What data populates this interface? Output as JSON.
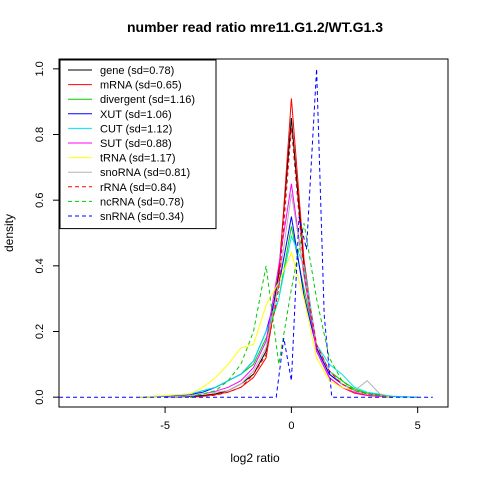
{
  "chart_data": {
    "type": "line",
    "title": "number read ratio mre11.G1.2/WT.G1.3",
    "xlabel": "log2 ratio",
    "ylabel": "density",
    "xlim": [
      -9.2,
      6.2
    ],
    "ylim": [
      -0.03,
      1.03
    ],
    "x_ticks": [
      -5,
      0,
      5
    ],
    "x_tick_labels": [
      "-5",
      "0",
      "5"
    ],
    "y_ticks": [
      0.0,
      0.2,
      0.4,
      0.6,
      0.8,
      1.0
    ],
    "y_tick_labels": [
      "0.0",
      "0.2",
      "0.4",
      "0.6",
      "0.8",
      "1.0"
    ],
    "grid": false,
    "legend_position": "top-left",
    "series": [
      {
        "name": "gene (sd=0.78)",
        "color": "#000000",
        "dash": "solid",
        "points": [
          [
            -5,
            0
          ],
          [
            -4,
            0.002
          ],
          [
            -3.5,
            0.005
          ],
          [
            -3,
            0.01
          ],
          [
            -2.5,
            0.02
          ],
          [
            -2,
            0.04
          ],
          [
            -1.5,
            0.07
          ],
          [
            -1,
            0.14
          ],
          [
            -0.5,
            0.38
          ],
          [
            0,
            0.85
          ],
          [
            0.5,
            0.4
          ],
          [
            1,
            0.15
          ],
          [
            1.5,
            0.07
          ],
          [
            2,
            0.04
          ],
          [
            2.5,
            0.02
          ],
          [
            3,
            0.01
          ],
          [
            3.5,
            0.004
          ],
          [
            4,
            0
          ]
        ]
      },
      {
        "name": "mRNA (sd=0.65)",
        "color": "#ff0000",
        "dash": "solid",
        "points": [
          [
            -4,
            0
          ],
          [
            -3.5,
            0.003
          ],
          [
            -3,
            0.008
          ],
          [
            -2.5,
            0.015
          ],
          [
            -2,
            0.03
          ],
          [
            -1.5,
            0.06
          ],
          [
            -1,
            0.12
          ],
          [
            -0.5,
            0.36
          ],
          [
            0,
            0.91
          ],
          [
            0.5,
            0.42
          ],
          [
            1,
            0.14
          ],
          [
            1.5,
            0.06
          ],
          [
            2,
            0.03
          ],
          [
            2.5,
            0.012
          ],
          [
            3,
            0.005
          ],
          [
            4,
            0
          ]
        ]
      },
      {
        "name": "divergent (sd=1.16)",
        "color": "#00cd00",
        "dash": "solid",
        "points": [
          [
            -6,
            0
          ],
          [
            -5,
            0.004
          ],
          [
            -4,
            0.008
          ],
          [
            -3.5,
            0.02
          ],
          [
            -3,
            0.03
          ],
          [
            -2.5,
            0.05
          ],
          [
            -2,
            0.07
          ],
          [
            -1.5,
            0.1
          ],
          [
            -1,
            0.18
          ],
          [
            -0.5,
            0.3
          ],
          [
            0,
            0.52
          ],
          [
            0.5,
            0.33
          ],
          [
            1,
            0.16
          ],
          [
            1.5,
            0.08
          ],
          [
            2,
            0.05
          ],
          [
            2.5,
            0.025
          ],
          [
            3,
            0.012
          ],
          [
            4,
            0.003
          ],
          [
            5,
            0
          ]
        ]
      },
      {
        "name": "XUT (sd=1.06)",
        "color": "#0000ff",
        "dash": "solid",
        "points": [
          [
            -6,
            0
          ],
          [
            -5,
            0.003
          ],
          [
            -4,
            0.008
          ],
          [
            -3.5,
            0.015
          ],
          [
            -3,
            0.03
          ],
          [
            -2.5,
            0.05
          ],
          [
            -2,
            0.07
          ],
          [
            -1.5,
            0.11
          ],
          [
            -1,
            0.2
          ],
          [
            -0.5,
            0.34
          ],
          [
            0,
            0.55
          ],
          [
            0.5,
            0.31
          ],
          [
            1,
            0.15
          ],
          [
            1.5,
            0.07
          ],
          [
            2,
            0.04
          ],
          [
            2.5,
            0.02
          ],
          [
            3,
            0.01
          ],
          [
            4,
            0.002
          ],
          [
            5,
            0
          ]
        ]
      },
      {
        "name": "CUT (sd=1.12)",
        "color": "#00e5ee",
        "dash": "solid",
        "points": [
          [
            -6,
            0
          ],
          [
            -5,
            0.004
          ],
          [
            -4,
            0.01
          ],
          [
            -3.5,
            0.02
          ],
          [
            -3,
            0.03
          ],
          [
            -2.5,
            0.05
          ],
          [
            -2,
            0.07
          ],
          [
            -1.5,
            0.11
          ],
          [
            -1,
            0.2
          ],
          [
            -0.5,
            0.3
          ],
          [
            0,
            0.49
          ],
          [
            0.5,
            0.4
          ],
          [
            1,
            0.16
          ],
          [
            1.5,
            0.1
          ],
          [
            2,
            0.07
          ],
          [
            2.5,
            0.03
          ],
          [
            3,
            0.015
          ],
          [
            4,
            0.003
          ],
          [
            5,
            0
          ]
        ]
      },
      {
        "name": "SUT (sd=0.88)",
        "color": "#ff00ff",
        "dash": "solid",
        "points": [
          [
            -5,
            0
          ],
          [
            -4,
            0.004
          ],
          [
            -3.5,
            0.01
          ],
          [
            -3,
            0.018
          ],
          [
            -2.5,
            0.03
          ],
          [
            -2,
            0.05
          ],
          [
            -1.5,
            0.09
          ],
          [
            -1,
            0.17
          ],
          [
            -0.5,
            0.4
          ],
          [
            0,
            0.65
          ],
          [
            0.5,
            0.37
          ],
          [
            1,
            0.14
          ],
          [
            1.5,
            0.06
          ],
          [
            2,
            0.03
          ],
          [
            2.5,
            0.015
          ],
          [
            3,
            0.006
          ],
          [
            4,
            0
          ]
        ]
      },
      {
        "name": "tRNA (sd=1.17)",
        "color": "#ffff00",
        "dash": "solid",
        "points": [
          [
            -6,
            0
          ],
          [
            -4,
            0.01
          ],
          [
            -3.5,
            0.03
          ],
          [
            -3,
            0.06
          ],
          [
            -2.5,
            0.1
          ],
          [
            -2,
            0.15
          ],
          [
            -1.5,
            0.16
          ],
          [
            -1,
            0.28
          ],
          [
            -0.5,
            0.35
          ],
          [
            0,
            0.44
          ],
          [
            0.5,
            0.3
          ],
          [
            1,
            0.12
          ],
          [
            1.5,
            0.05
          ],
          [
            2,
            0.03
          ],
          [
            2.5,
            0.02
          ],
          [
            3,
            0.01
          ],
          [
            4,
            0
          ]
        ]
      },
      {
        "name": "snoRNA (sd=0.81)",
        "color": "#b3b3b3",
        "dash": "solid",
        "points": [
          [
            -5,
            0
          ],
          [
            -4,
            0.004
          ],
          [
            -3,
            0.015
          ],
          [
            -2.5,
            0.02
          ],
          [
            -2,
            0.04
          ],
          [
            -1.5,
            0.08
          ],
          [
            -1,
            0.15
          ],
          [
            -0.5,
            0.35
          ],
          [
            0,
            0.62
          ],
          [
            0.5,
            0.38
          ],
          [
            1,
            0.16
          ],
          [
            1.5,
            0.08
          ],
          [
            2,
            0.04
          ],
          [
            2.5,
            0.02
          ],
          [
            3,
            0.05
          ],
          [
            3.5,
            0.01
          ],
          [
            4,
            0
          ]
        ]
      },
      {
        "name": "rRNA (sd=0.84)",
        "color": "#ff0000",
        "dash": "dashed",
        "points": [
          [
            -4,
            0
          ],
          [
            -3,
            0.006
          ],
          [
            -2.5,
            0.015
          ],
          [
            -2,
            0.03
          ],
          [
            -1.5,
            0.07
          ],
          [
            -1,
            0.13
          ],
          [
            -0.5,
            0.33
          ],
          [
            0,
            0.82
          ],
          [
            0.5,
            0.38
          ],
          [
            1,
            0.16
          ],
          [
            1.5,
            0.08
          ],
          [
            2,
            0.04
          ],
          [
            2.5,
            0.02
          ],
          [
            3,
            0.01
          ],
          [
            4,
            0
          ]
        ]
      },
      {
        "name": "ncRNA (sd=0.78)",
        "color": "#00cd00",
        "dash": "dashed",
        "points": [
          [
            -4,
            0
          ],
          [
            -3,
            0.02
          ],
          [
            -2.5,
            0.05
          ],
          [
            -2,
            0.1
          ],
          [
            -1.5,
            0.2
          ],
          [
            -1,
            0.4
          ],
          [
            -0.5,
            0.1
          ],
          [
            0,
            0.33
          ],
          [
            0.5,
            0.53
          ],
          [
            1,
            0.3
          ],
          [
            1.5,
            0.12
          ],
          [
            2,
            0.05
          ],
          [
            2.5,
            0.02
          ],
          [
            3,
            0.01
          ],
          [
            4,
            0
          ]
        ]
      },
      {
        "name": "snRNA (sd=0.34)",
        "color": "#0000ff",
        "dash": "dashed",
        "points": [
          [
            -9.2,
            0
          ],
          [
            -0.6,
            0
          ],
          [
            -0.3,
            0.18
          ],
          [
            0,
            0.05
          ],
          [
            0.3,
            0.55
          ],
          [
            0.6,
            0.45
          ],
          [
            1,
            1.0
          ],
          [
            1.3,
            0.25
          ],
          [
            1.6,
            0
          ],
          [
            5.6,
            0
          ]
        ]
      }
    ]
  }
}
